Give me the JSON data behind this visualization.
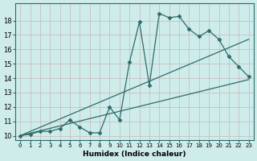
{
  "xlabel": "Humidex (Indice chaleur)",
  "bg_color": "#ceecea",
  "line_color": "#2e6b6b",
  "grid_color": "#b0d8d5",
  "xmin": -0.5,
  "xmax": 23.5,
  "ymin": 9.7,
  "ymax": 19.2,
  "yticks": [
    10,
    11,
    12,
    13,
    14,
    15,
    16,
    17,
    18
  ],
  "xticks": [
    0,
    1,
    2,
    3,
    4,
    5,
    6,
    7,
    8,
    9,
    10,
    11,
    12,
    13,
    14,
    15,
    16,
    17,
    18,
    19,
    20,
    21,
    22,
    23
  ],
  "curve1_x": [
    0,
    1,
    2,
    3,
    4,
    5,
    6,
    7,
    8,
    9,
    10,
    11,
    12,
    13,
    14,
    15,
    16,
    17,
    18,
    19,
    20,
    21,
    22,
    23
  ],
  "curve1_y": [
    10.0,
    10.1,
    10.3,
    10.3,
    10.5,
    11.1,
    10.6,
    10.2,
    10.2,
    12.0,
    11.1,
    15.1,
    17.9,
    13.5,
    18.5,
    18.2,
    18.3,
    17.4,
    16.9,
    17.3,
    16.7,
    15.5,
    14.8,
    14.1
  ],
  "curve2_x": [
    0,
    23
  ],
  "curve2_y": [
    10.0,
    13.9
  ],
  "curve3_x": [
    0,
    23
  ],
  "curve3_y": [
    10.0,
    16.7
  ],
  "marker_size": 2.5,
  "lw": 0.9
}
